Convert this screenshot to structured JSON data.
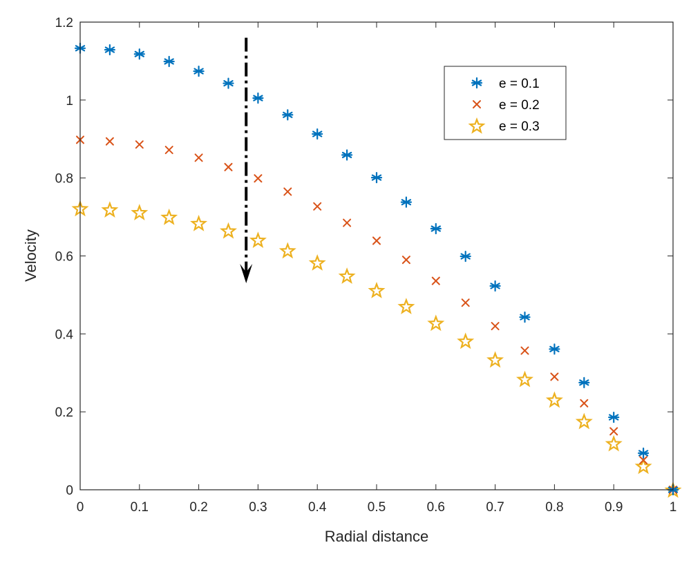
{
  "chart_data": {
    "type": "scatter",
    "title": "",
    "xlabel": "Radial distance",
    "ylabel": "Velocity",
    "xlim": [
      0,
      1
    ],
    "ylim": [
      0,
      1.2
    ],
    "xticks": [
      "0",
      "0.1",
      "0.2",
      "0.3",
      "0.4",
      "0.5",
      "0.6",
      "0.7",
      "0.8",
      "0.9",
      "1"
    ],
    "yticks": [
      "0",
      "0.2",
      "0.4",
      "0.6",
      "0.8",
      "1",
      "1.2"
    ],
    "grid": false,
    "legend_position": "top-right",
    "x": [
      0,
      0.05,
      0.1,
      0.15,
      0.2,
      0.25,
      0.3,
      0.35,
      0.4,
      0.45,
      0.5,
      0.55,
      0.6,
      0.65,
      0.7,
      0.75,
      0.8,
      0.85,
      0.9,
      0.95,
      1
    ],
    "series": [
      {
        "name": "e = 0.1",
        "marker": "asterisk",
        "color": "#0072BD",
        "values": [
          1.133,
          1.129,
          1.118,
          1.099,
          1.074,
          1.043,
          1.005,
          0.962,
          0.913,
          0.859,
          0.801,
          0.738,
          0.67,
          0.599,
          0.523,
          0.443,
          0.361,
          0.275,
          0.186,
          0.094,
          0
        ]
      },
      {
        "name": "e = 0.2",
        "marker": "x",
        "color": "#D95319",
        "values": [
          0.898,
          0.894,
          0.886,
          0.872,
          0.852,
          0.828,
          0.799,
          0.765,
          0.727,
          0.685,
          0.639,
          0.59,
          0.536,
          0.48,
          0.42,
          0.357,
          0.29,
          0.222,
          0.15,
          0.076,
          0
        ]
      },
      {
        "name": "e = 0.3",
        "marker": "star",
        "color": "#EDB120",
        "values": [
          0.722,
          0.719,
          0.712,
          0.7,
          0.684,
          0.665,
          0.641,
          0.614,
          0.583,
          0.549,
          0.512,
          0.471,
          0.428,
          0.382,
          0.334,
          0.284,
          0.231,
          0.176,
          0.119,
          0.061,
          0
        ]
      }
    ],
    "annotations": [
      {
        "type": "arrow",
        "style": "dash-dot",
        "color": "#000000",
        "x": 0.28,
        "y_from": 1.16,
        "y_to": 0.53
      }
    ]
  }
}
